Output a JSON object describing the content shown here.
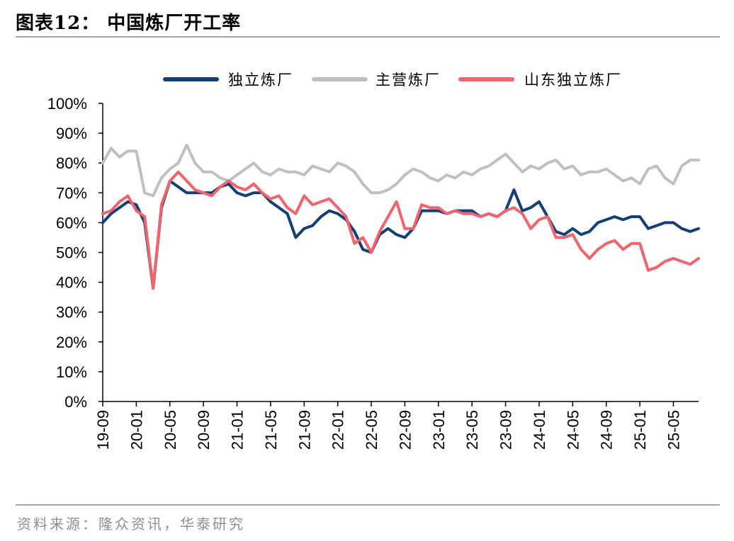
{
  "header": {
    "title": "图表12：  中国炼厂开工率"
  },
  "footer": {
    "source": "资料来源：隆众资讯，华泰研究"
  },
  "chart_data": {
    "type": "line",
    "ylim": [
      0,
      100
    ],
    "yticks": [
      "0%",
      "10%",
      "20%",
      "30%",
      "40%",
      "50%",
      "60%",
      "70%",
      "80%",
      "90%",
      "100%"
    ],
    "xlim": [
      "2019-09",
      "2025-08"
    ],
    "xticks": [
      "19-09",
      "20-01",
      "20-05",
      "20-09",
      "21-01",
      "21-05",
      "21-09",
      "22-01",
      "22-05",
      "22-09",
      "23-01",
      "23-05",
      "23-09",
      "24-01",
      "24-05",
      "24-09",
      "25-01",
      "25-05"
    ],
    "legend_position": "top",
    "series": [
      {
        "name": "独立炼厂",
        "color": "#123f7a",
        "x": [
          "2019-09",
          "2019-10",
          "2019-11",
          "2019-12",
          "2020-01",
          "2020-02",
          "2020-03",
          "2020-04",
          "2020-05",
          "2020-06",
          "2020-07",
          "2020-08",
          "2020-09",
          "2020-10",
          "2020-11",
          "2020-12",
          "2021-01",
          "2021-02",
          "2021-03",
          "2021-04",
          "2021-05",
          "2021-06",
          "2021-07",
          "2021-08",
          "2021-09",
          "2021-10",
          "2021-11",
          "2021-12",
          "2022-01",
          "2022-02",
          "2022-03",
          "2022-04",
          "2022-05",
          "2022-06",
          "2022-07",
          "2022-08",
          "2022-09",
          "2022-10",
          "2022-11",
          "2022-12",
          "2023-01",
          "2023-02",
          "2023-03",
          "2023-04",
          "2023-05",
          "2023-06",
          "2023-07",
          "2023-08",
          "2023-09",
          "2023-10",
          "2023-11",
          "2023-12",
          "2024-01",
          "2024-02",
          "2024-03",
          "2024-04",
          "2024-05",
          "2024-06",
          "2024-07",
          "2024-08",
          "2024-09",
          "2024-10",
          "2024-11",
          "2024-12",
          "2025-01",
          "2025-02",
          "2025-03",
          "2025-04",
          "2025-05",
          "2025-06",
          "2025-07",
          "2025-08"
        ],
        "values": [
          60,
          63,
          65,
          67,
          66,
          60,
          38,
          65,
          74,
          72,
          70,
          70,
          70,
          70,
          72,
          73,
          70,
          69,
          70,
          70,
          67,
          65,
          63,
          55,
          58,
          59,
          62,
          64,
          63,
          61,
          57,
          51,
          50,
          56,
          58,
          56,
          55,
          58,
          64,
          64,
          64,
          63,
          64,
          64,
          64,
          62,
          63,
          62,
          64,
          71,
          64,
          65,
          67,
          62,
          57,
          56,
          58,
          56,
          57,
          60,
          61,
          62,
          61,
          62,
          62,
          58,
          59,
          60,
          60,
          58,
          57,
          58
        ]
      },
      {
        "name": "主营炼厂",
        "color": "#c0c0c0",
        "x": [
          "2019-09",
          "2019-10",
          "2019-11",
          "2019-12",
          "2020-01",
          "2020-02",
          "2020-03",
          "2020-04",
          "2020-05",
          "2020-06",
          "2020-07",
          "2020-08",
          "2020-09",
          "2020-10",
          "2020-11",
          "2020-12",
          "2021-01",
          "2021-02",
          "2021-03",
          "2021-04",
          "2021-05",
          "2021-06",
          "2021-07",
          "2021-08",
          "2021-09",
          "2021-10",
          "2021-11",
          "2021-12",
          "2022-01",
          "2022-02",
          "2022-03",
          "2022-04",
          "2022-05",
          "2022-06",
          "2022-07",
          "2022-08",
          "2022-09",
          "2022-10",
          "2022-11",
          "2022-12",
          "2023-01",
          "2023-02",
          "2023-03",
          "2023-04",
          "2023-05",
          "2023-06",
          "2023-07",
          "2023-08",
          "2023-09",
          "2023-10",
          "2023-11",
          "2023-12",
          "2024-01",
          "2024-02",
          "2024-03",
          "2024-04",
          "2024-05",
          "2024-06",
          "2024-07",
          "2024-08",
          "2024-09",
          "2024-10",
          "2024-11",
          "2024-12",
          "2025-01",
          "2025-02",
          "2025-03",
          "2025-04",
          "2025-05",
          "2025-06",
          "2025-07",
          "2025-08"
        ],
        "values": [
          80,
          85,
          82,
          84,
          84,
          70,
          69,
          75,
          78,
          80,
          86,
          80,
          77,
          77,
          75,
          74,
          76,
          78,
          80,
          77,
          76,
          78,
          77,
          77,
          76,
          79,
          78,
          77,
          80,
          79,
          77,
          73,
          70,
          70,
          71,
          73,
          76,
          78,
          77,
          75,
          74,
          76,
          75,
          77,
          76,
          78,
          79,
          81,
          83,
          80,
          77,
          79,
          78,
          80,
          81,
          78,
          79,
          76,
          77,
          77,
          78,
          76,
          74,
          75,
          73,
          78,
          79,
          75,
          73,
          79,
          81,
          81
        ]
      },
      {
        "name": "山东独立炼厂",
        "color": "#f2636b",
        "x": [
          "2019-09",
          "2019-10",
          "2019-11",
          "2019-12",
          "2020-01",
          "2020-02",
          "2020-03",
          "2020-04",
          "2020-05",
          "2020-06",
          "2020-07",
          "2020-08",
          "2020-09",
          "2020-10",
          "2020-11",
          "2020-12",
          "2021-01",
          "2021-02",
          "2021-03",
          "2021-04",
          "2021-05",
          "2021-06",
          "2021-07",
          "2021-08",
          "2021-09",
          "2021-10",
          "2021-11",
          "2021-12",
          "2022-01",
          "2022-02",
          "2022-03",
          "2022-04",
          "2022-05",
          "2022-06",
          "2022-07",
          "2022-08",
          "2022-09",
          "2022-10",
          "2022-11",
          "2022-12",
          "2023-01",
          "2023-02",
          "2023-03",
          "2023-04",
          "2023-05",
          "2023-06",
          "2023-07",
          "2023-08",
          "2023-09",
          "2023-10",
          "2023-11",
          "2023-12",
          "2024-01",
          "2024-02",
          "2024-03",
          "2024-04",
          "2024-05",
          "2024-06",
          "2024-07",
          "2024-08",
          "2024-09",
          "2024-10",
          "2024-11",
          "2024-12",
          "2025-01",
          "2025-02",
          "2025-03",
          "2025-04",
          "2025-05",
          "2025-06",
          "2025-07",
          "2025-08"
        ],
        "values": [
          63,
          64,
          67,
          69,
          64,
          62,
          38,
          66,
          74,
          77,
          74,
          71,
          70,
          69,
          72,
          74,
          72,
          71,
          73,
          70,
          68,
          69,
          65,
          63,
          69,
          66,
          67,
          68,
          65,
          62,
          53,
          55,
          50,
          57,
          62,
          67,
          58,
          58,
          66,
          65,
          65,
          63,
          64,
          63,
          63,
          62,
          63,
          62,
          64,
          65,
          63,
          58,
          61,
          62,
          55,
          55,
          56,
          51,
          48,
          51,
          53,
          54,
          51,
          53,
          53,
          44,
          45,
          47,
          48,
          47,
          46,
          48
        ]
      }
    ]
  }
}
